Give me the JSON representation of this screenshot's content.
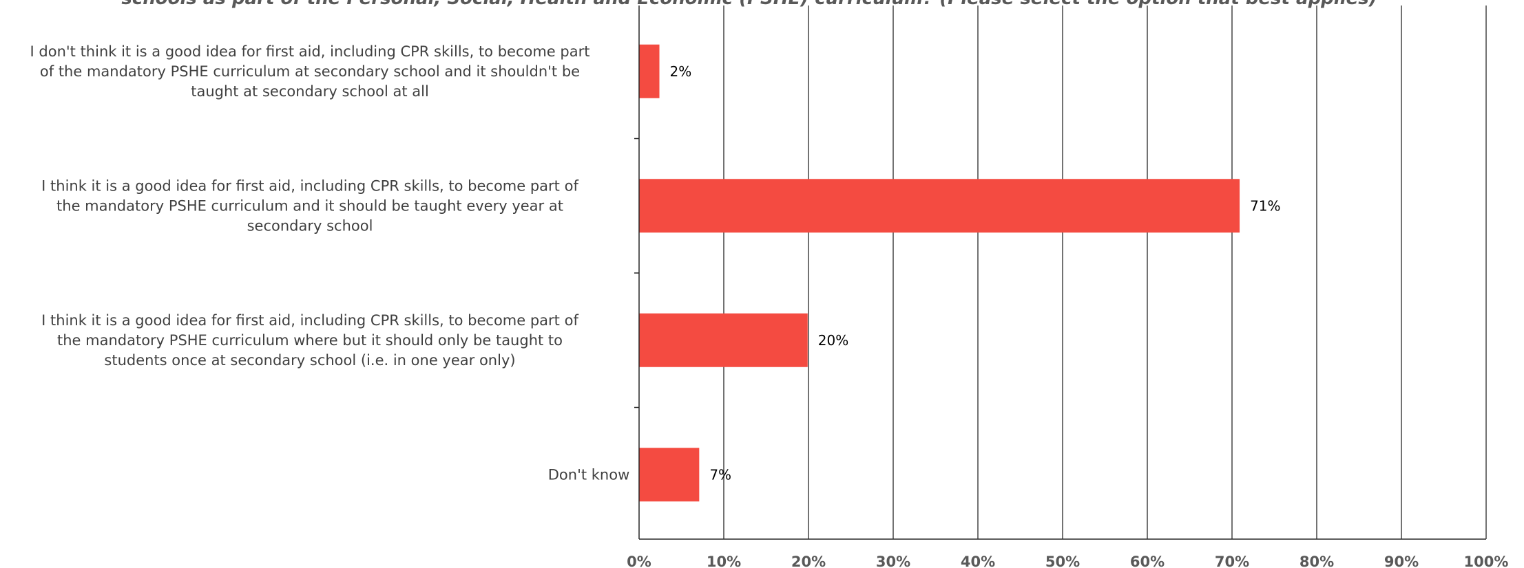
{
  "chart_data": {
    "type": "bar",
    "orientation": "horizontal",
    "title": "schools as part of the Personal, Social, Health and Economic (PSHE) curriculum? (Please select the option that best applies)",
    "categories": [
      [
        "I don't think it is a good idea for first aid, including CPR skills, to become part",
        "of the mandatory PSHE curriculum at secondary school and it shouldn't be",
        "taught at secondary school at all"
      ],
      [
        "I think it is a good idea for first aid, including CPR skills, to become part of",
        "the mandatory PSHE curriculum and it should be taught every year at",
        "secondary school"
      ],
      [
        "I think it is a good idea for first aid, including CPR skills, to become part of",
        "the mandatory PSHE curriculum where but it should only be taught to",
        "students once at secondary school (i.e. in one year only)"
      ],
      [
        "Don't know"
      ]
    ],
    "values": [
      2.4,
      70.9,
      19.9,
      7.1
    ],
    "data_labels": [
      "2%",
      "71%",
      "20%",
      "7%"
    ],
    "xlim": [
      0,
      100
    ],
    "x_ticks": [
      "0%",
      "10%",
      "20%",
      "30%",
      "40%",
      "50%",
      "60%",
      "70%",
      "80%",
      "90%",
      "100%"
    ],
    "grid": true,
    "bar_color": "#f44b41",
    "grid_color": "#262626"
  }
}
